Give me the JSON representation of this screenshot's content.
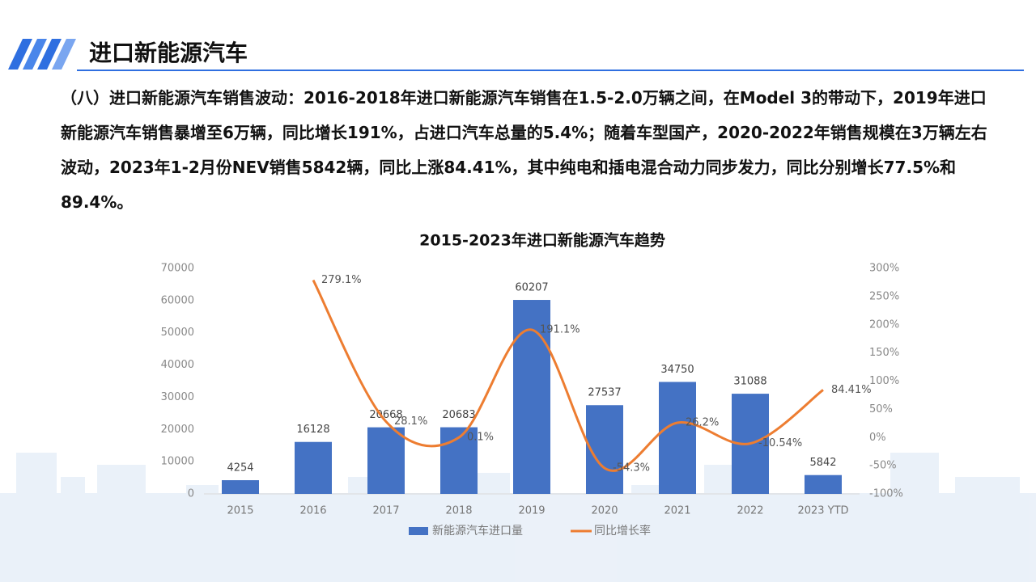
{
  "header": {
    "title": "进口新能源汽车"
  },
  "paragraph": "（八）进口新能源汽车销售波动：2016-2018年进口新能源汽车销售在1.5-2.0万辆之间，在Model 3的带动下，2019年进口新能源汽车销售暴增至6万辆，同比增长191%，占进口汽车总量的5.4%；随着车型国产，2020-2022年销售规模在3万辆左右波动，2023年1-2月份NEV销售5842辆，同比上涨84.41%，其中纯电和插电混合动力同步发力，同比分别增长77.5%和89.4%。",
  "chart_data": {
    "type": "bar",
    "title": "2015-2023年进口新能源汽车趋势",
    "categories": [
      "2015",
      "2016",
      "2017",
      "2018",
      "2019",
      "2020",
      "2021",
      "2022",
      "2023 YTD"
    ],
    "series": [
      {
        "name": "新能源汽车进口量",
        "type": "bar",
        "color": "#4472c4",
        "values": [
          4254,
          16128,
          20668,
          20683,
          60207,
          27537,
          34750,
          31088,
          5842
        ]
      },
      {
        "name": "同比增长率",
        "type": "line",
        "axis": "y2",
        "color": "#ed7d31",
        "values": [
          null,
          279.1,
          28.1,
          0.1,
          191.1,
          -54.3,
          26.2,
          -10.54,
          84.41
        ],
        "value_labels": [
          null,
          "279.1%",
          "28.1%",
          "0.1%",
          "191.1%",
          "-54.3%",
          "26.2%",
          "-10.54%",
          "84.41%"
        ]
      }
    ],
    "ylim": [
      0,
      70000
    ],
    "yticks": [
      0,
      10000,
      20000,
      30000,
      40000,
      50000,
      60000,
      70000
    ],
    "y2lim": [
      -100,
      300
    ],
    "y2ticks": [
      {
        "value": -100,
        "label": "-100%"
      },
      {
        "value": -50,
        "label": "-50%"
      },
      {
        "value": 0,
        "label": "0%"
      },
      {
        "value": 50,
        "label": "50%"
      },
      {
        "value": 100,
        "label": "100%"
      },
      {
        "value": 150,
        "label": "150%"
      },
      {
        "value": 200,
        "label": "200%"
      },
      {
        "value": 250,
        "label": "250%"
      },
      {
        "value": 300,
        "label": "300%"
      }
    ],
    "legend": "bottom"
  }
}
